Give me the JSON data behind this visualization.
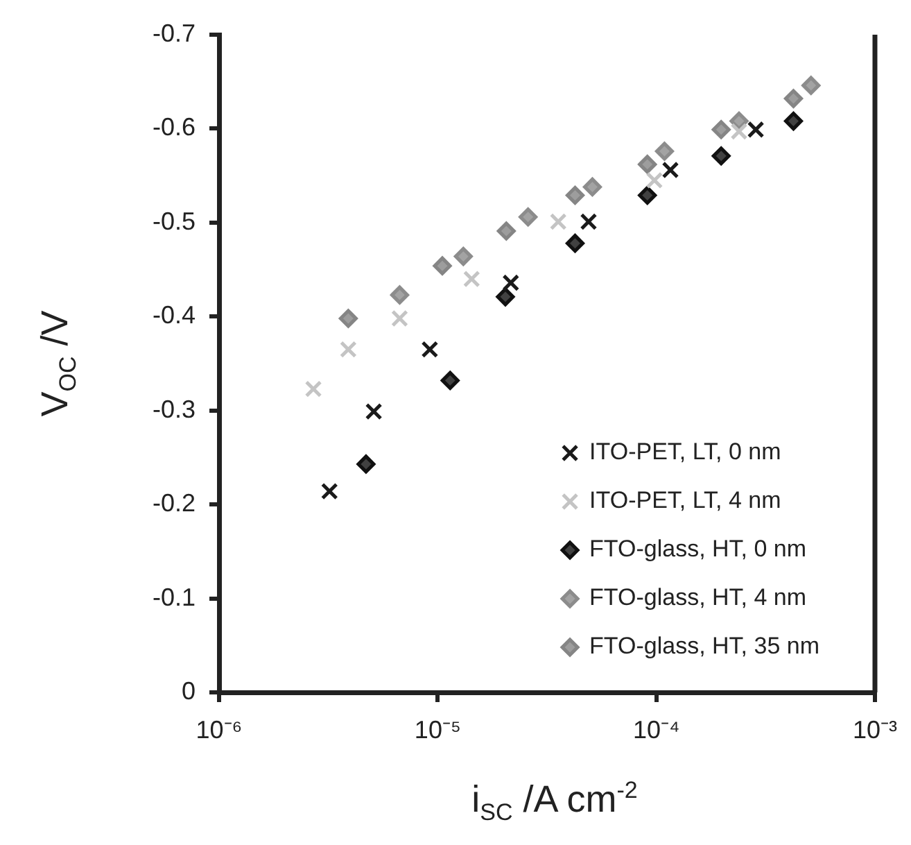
{
  "chart_data": {
    "type": "scatter",
    "xlabel": "i$_{SC}$ /A cm$^{-2}$",
    "ylabel": "V$_{OC}$ /V",
    "log": "x",
    "grid": false,
    "legend": "bottom right",
    "xlim": [
      1e-06,
      0.001
    ],
    "xticks": [
      {
        "value": 1e-06,
        "label": "10⁻⁶"
      },
      {
        "value": 1e-05,
        "label": "10⁻⁵"
      },
      {
        "value": 0.0001,
        "label": "10⁻⁴"
      },
      {
        "value": 0.001,
        "label": "10⁻³"
      }
    ],
    "ylim": [
      0,
      -0.7
    ],
    "yticks": [
      0,
      -0.1,
      -0.2,
      -0.3,
      -0.4,
      -0.5,
      -0.6,
      -0.7
    ],
    "series": [
      {
        "name": "ITO-PET, LT, 0 nm",
        "color": "#1a1a1a",
        "marker": "cross",
        "x": [
          3.2e-06,
          5.1e-06,
          9.2e-06,
          2.16e-05,
          4.9e-05,
          0.000116,
          0.000285
        ],
        "values": [
          -0.214,
          -0.299,
          -0.365,
          -0.436,
          -0.501,
          -0.556,
          -0.599
        ]
      },
      {
        "name": "ITO-PET, LT, 4 nm",
        "color": "#c4c4c4",
        "marker": "cross",
        "x": [
          2.7e-06,
          3.9e-06,
          6.7e-06,
          1.43e-05,
          3.56e-05,
          9.8e-05,
          0.000239
        ],
        "values": [
          -0.323,
          -0.365,
          -0.398,
          -0.44,
          -0.501,
          -0.545,
          -0.597
        ]
      },
      {
        "name": "FTO-glass, HT, 0 nm",
        "color": "#111111",
        "marker": "diamond",
        "x": [
          4.7e-06,
          1.14e-05,
          2.04e-05,
          4.25e-05,
          9.1e-05,
          0.000198,
          0.000424
        ],
        "values": [
          -0.243,
          -0.332,
          -0.421,
          -0.478,
          -0.529,
          -0.571,
          -0.608
        ]
      },
      {
        "name": "FTO-glass, HT, 4 nm",
        "color": "#8c8c8c",
        "marker": "diamond",
        "x": [
          6.7e-06,
          1.31e-05,
          2.59e-05,
          5.1e-05,
          0.000109,
          0.000239,
          0.00051
        ],
        "values": [
          -0.423,
          -0.464,
          -0.506,
          -0.538,
          -0.576,
          -0.608,
          -0.646
        ]
      },
      {
        "name": "FTO-glass, HT, 35 nm",
        "color": "#858585",
        "marker": "diamond",
        "x": [
          3.9e-06,
          1.05e-05,
          2.06e-05,
          4.25e-05,
          9.1e-05,
          0.000198,
          0.000424
        ],
        "values": [
          -0.398,
          -0.454,
          -0.491,
          -0.529,
          -0.562,
          -0.599,
          -0.632
        ]
      }
    ]
  }
}
